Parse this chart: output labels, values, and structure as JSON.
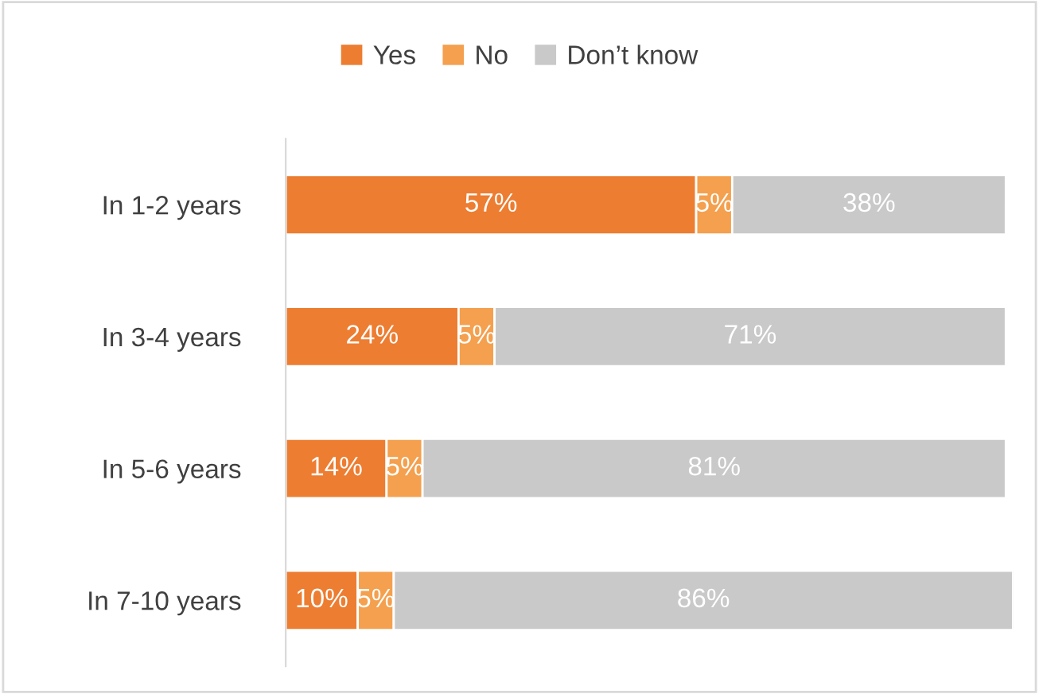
{
  "chart_data": {
    "type": "bar",
    "orientation": "horizontal",
    "stacked": true,
    "legend": "top",
    "grid": false,
    "tick_labels": "y",
    "categories": [
      "In 1-2 years",
      "In 3-4 years",
      "In 5-6 years",
      "In 7-10 years"
    ],
    "series": [
      {
        "name": "Yes",
        "color": "#ed7d31",
        "values": [
          57,
          24,
          14,
          10
        ],
        "value_labels": [
          "57%",
          "24%",
          "14%",
          "10%"
        ]
      },
      {
        "name": "No",
        "color": "#f4a04e",
        "values": [
          5,
          5,
          5,
          5
        ],
        "value_labels": [
          "5%",
          "5%",
          "5%",
          "5%"
        ]
      },
      {
        "name": "Don’t know",
        "color": "#c9c9c9",
        "values": [
          38,
          71,
          81,
          86
        ],
        "value_labels": [
          "38%",
          "71%",
          "81%",
          "86%"
        ]
      }
    ]
  }
}
